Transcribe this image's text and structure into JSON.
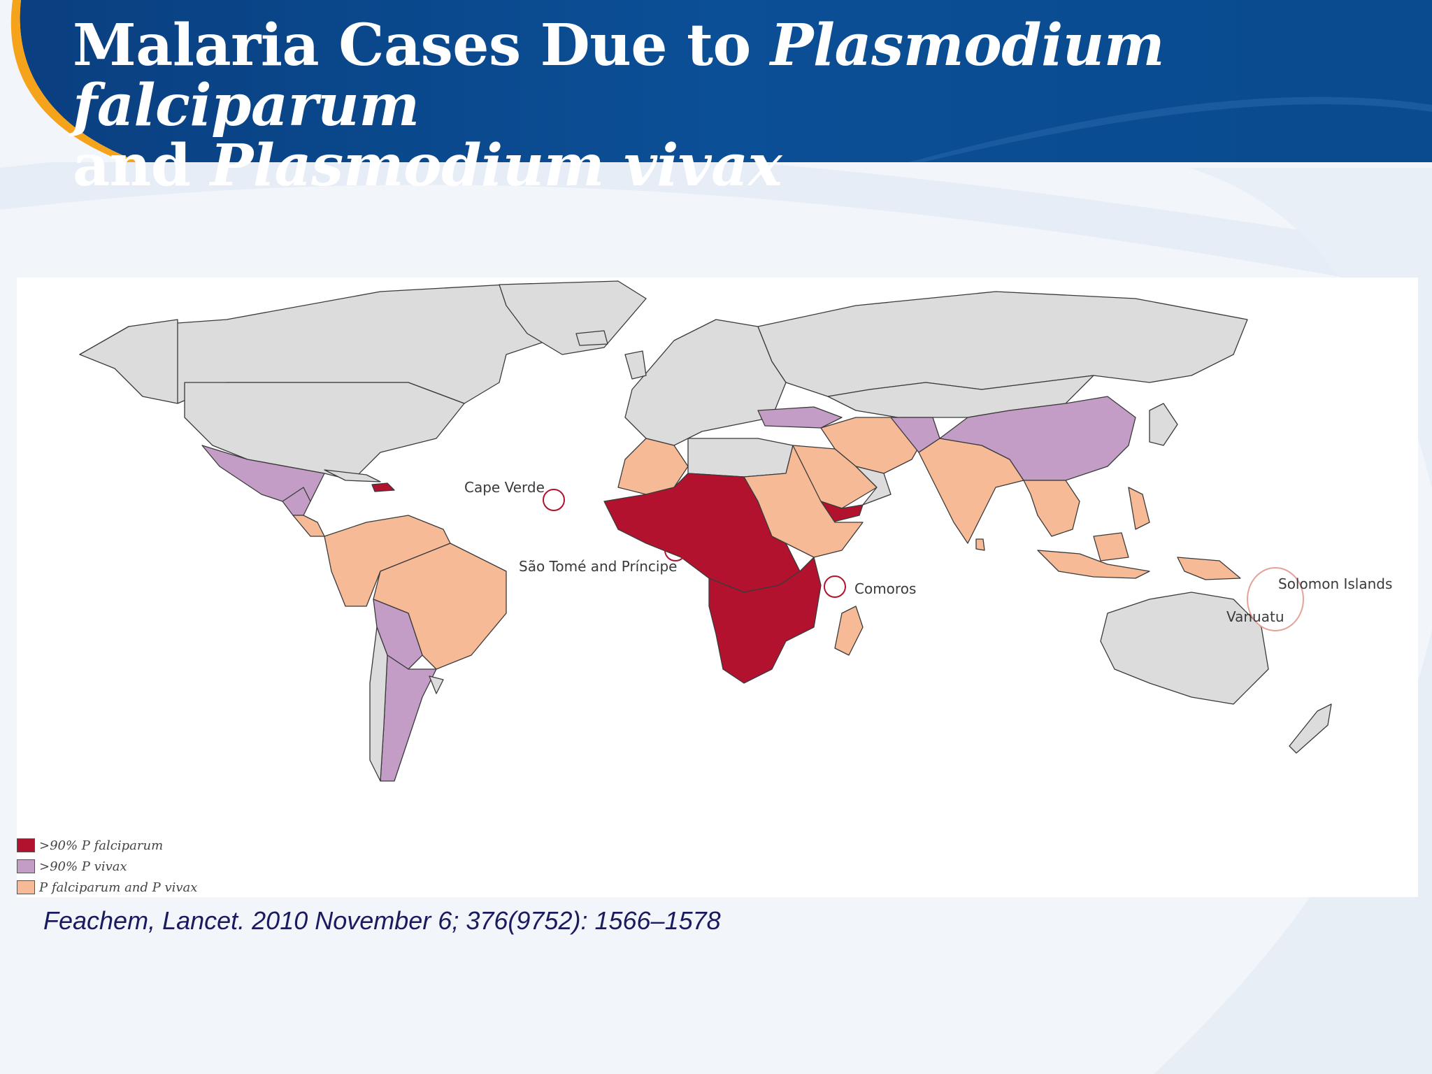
{
  "slide": {
    "title_line1_plain": "Malaria Cases Due to ",
    "title_line1_italic": "Plasmodium falciparum",
    "title_line2_plain": "and ",
    "title_line2_italic": "Plasmodium vivax",
    "citation": "Feachem, Lancet. 2010 November 6; 376(9752): 1566–1578"
  },
  "map": {
    "legend": [
      {
        "label": ">90% P falciparum",
        "color": "#b3122f"
      },
      {
        "label": ">90% P vivax",
        "color": "#c39dc6"
      },
      {
        "label": "P falciparum and P vivax",
        "color": "#f6ba97"
      }
    ],
    "annotations": {
      "cape_verde": "Cape Verde",
      "sao_tome": "São Tomé and Príncipe",
      "comoros": "Comoros",
      "solomon": "Solomon Islands",
      "vanuatu": "Vanuatu"
    },
    "colors": {
      "no_malaria": "#dcdcdc",
      "falciparum": "#b3122f",
      "vivax": "#c39dc6",
      "mixed": "#f6ba97",
      "header_blue": "#0a4f95",
      "accent_orange": "#f5a31a"
    }
  }
}
